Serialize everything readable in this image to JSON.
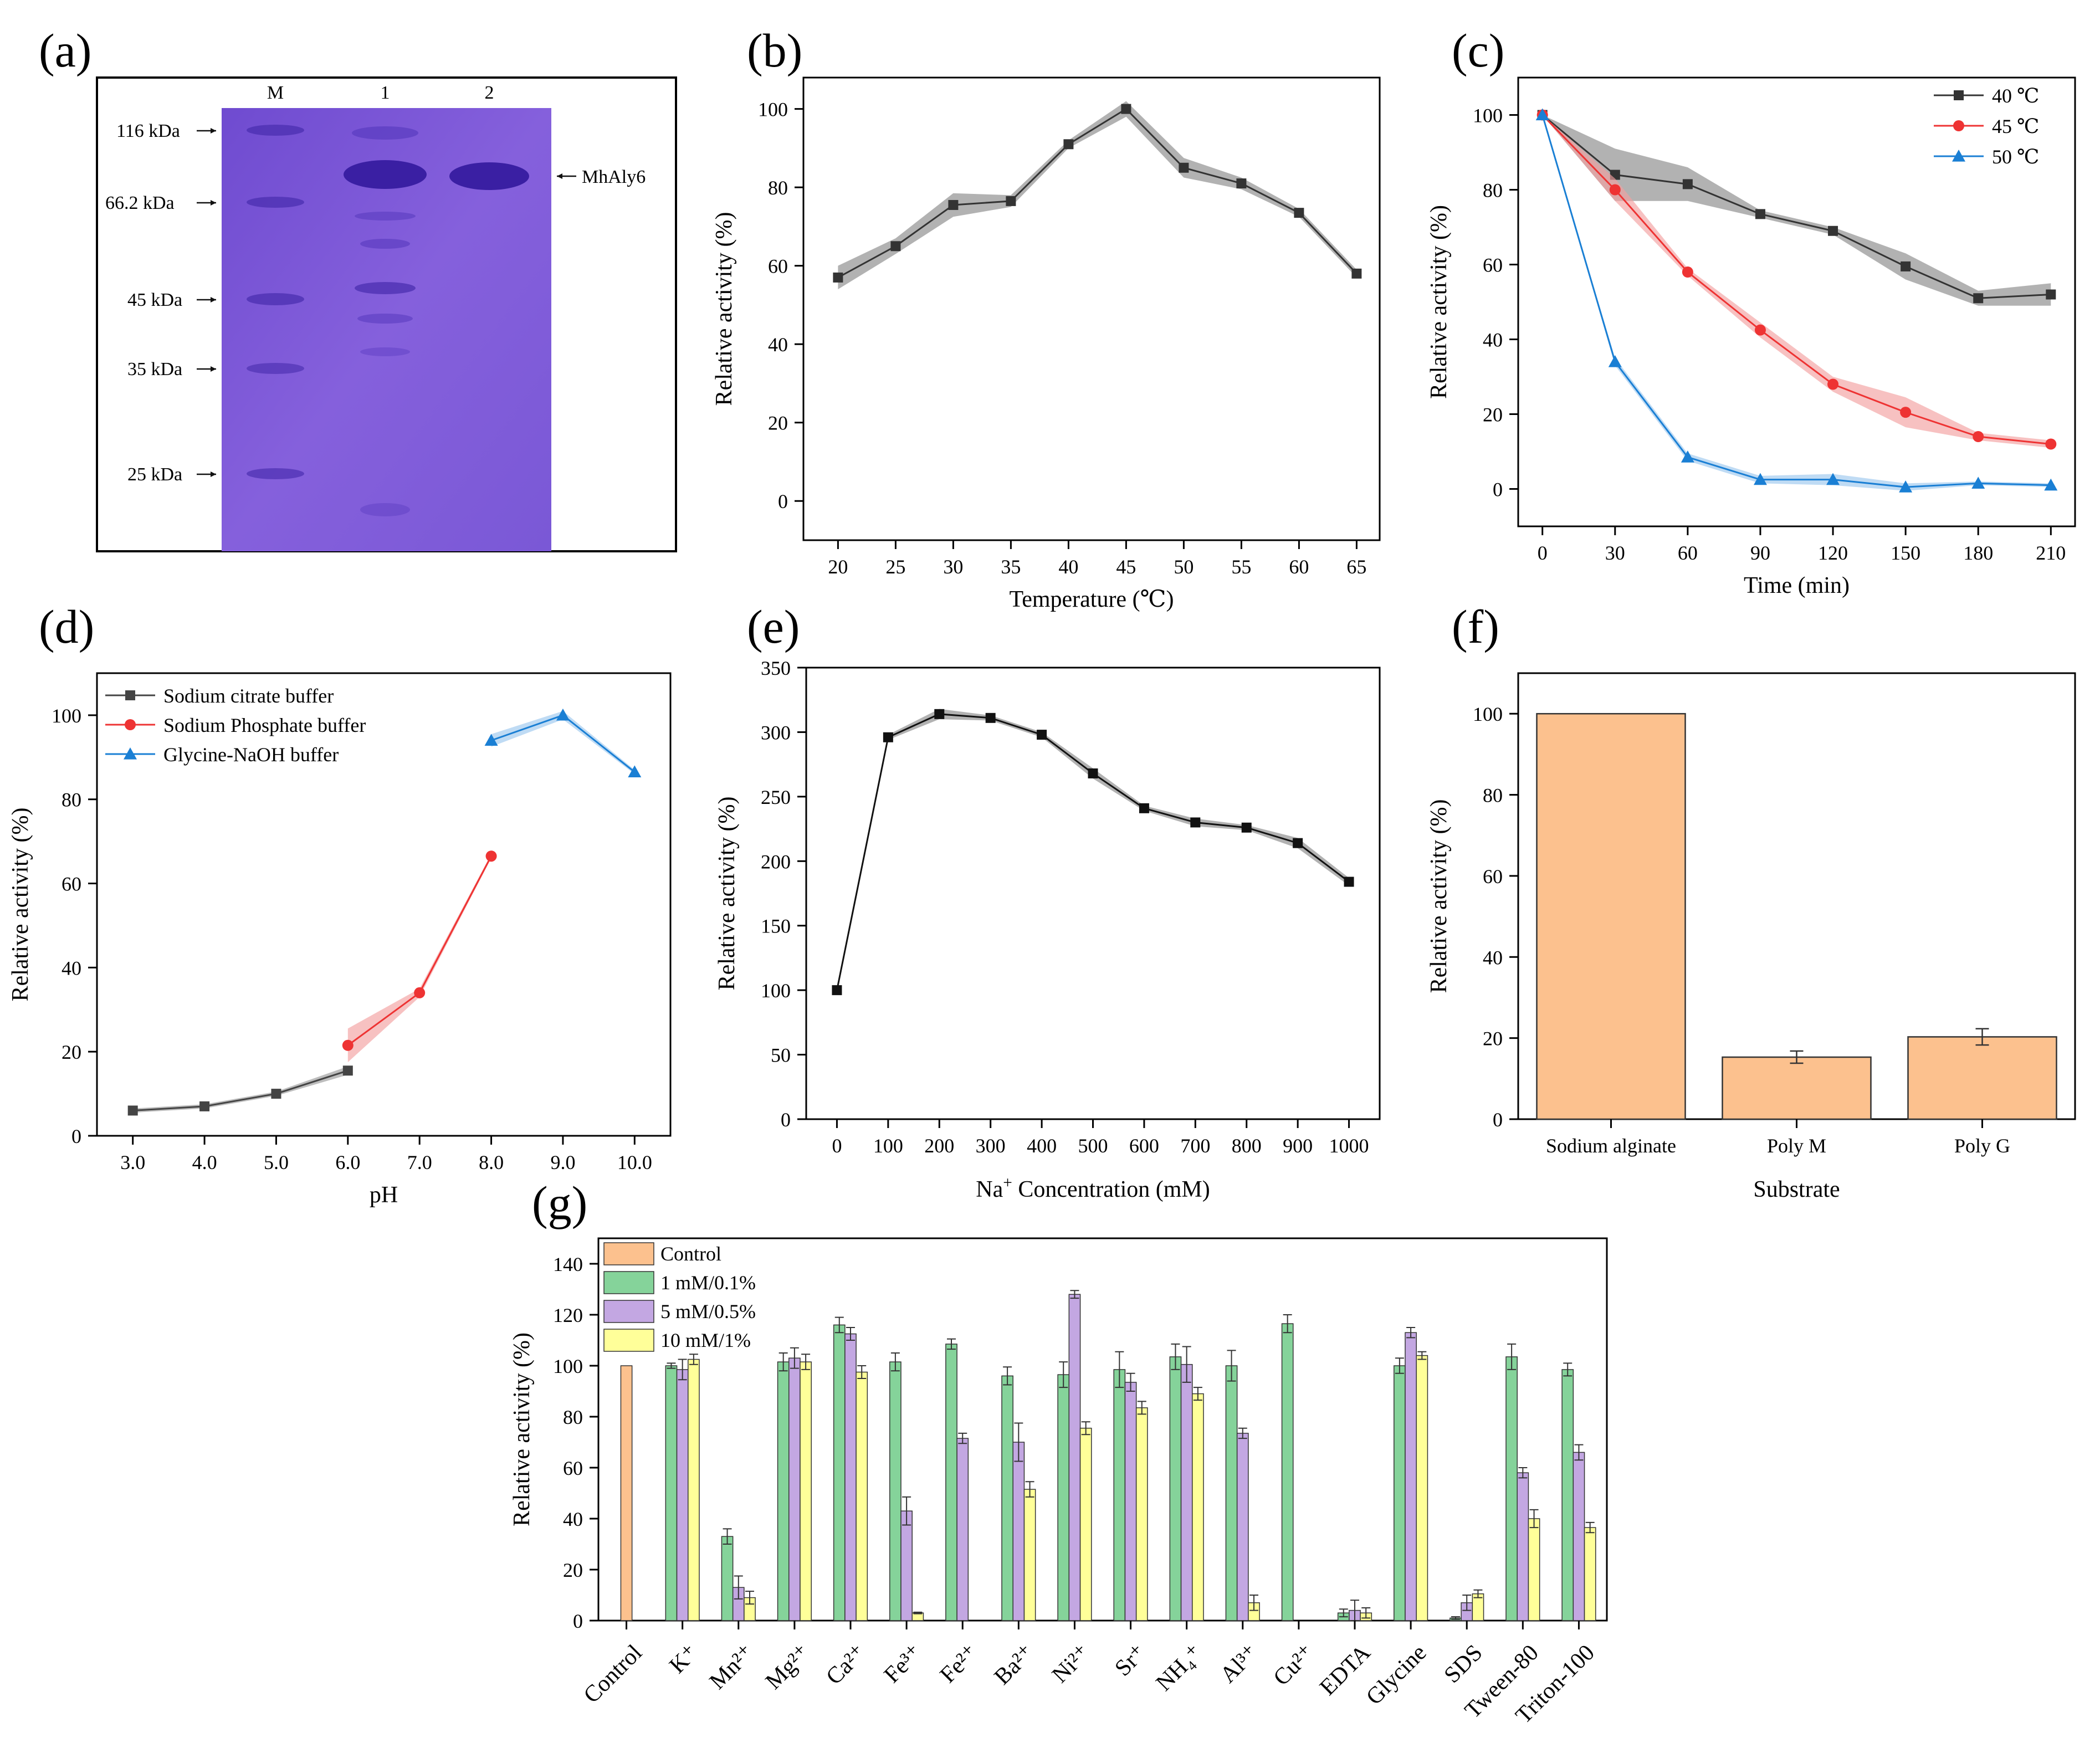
{
  "figure": {
    "panel_labels": [
      "(a)",
      "(b)",
      "(c)",
      "(d)",
      "(e)",
      "(f)",
      "(g)"
    ]
  },
  "gel": {
    "lanes": [
      "M",
      "1",
      "2"
    ],
    "markers": [
      "116 kDa",
      "66.2 kDa",
      "45 kDa",
      "35 kDa",
      "25 kDa"
    ],
    "marker_values": [
      116,
      66.2,
      45,
      35,
      25
    ],
    "band_label": "MhAly6",
    "colors": {
      "gel": "#7b55d6",
      "band": "#3a1fa3"
    }
  },
  "chart_data": [
    {
      "panel": "b",
      "type": "line",
      "xlabel": "Temperature (℃)",
      "ylabel": "Relative activity (%)",
      "xlim": [
        17,
        67
      ],
      "ylim": [
        -10,
        108
      ],
      "xticks": [
        20,
        25,
        30,
        35,
        40,
        45,
        50,
        55,
        60,
        65
      ],
      "yticks": [
        0,
        20,
        40,
        60,
        80,
        100
      ],
      "series": [
        {
          "color": "#333333",
          "marker": "square",
          "band": "#888888",
          "x": [
            20,
            25,
            30,
            35,
            40,
            45,
            50,
            55,
            60,
            65
          ],
          "y": [
            57,
            65,
            75.5,
            76.5,
            91,
            100,
            85,
            81,
            73.5,
            58
          ],
          "err": [
            3,
            2,
            3,
            1.5,
            1,
            2,
            2.5,
            1.5,
            1,
            1
          ]
        }
      ]
    },
    {
      "panel": "c",
      "type": "line",
      "xlabel": "Time (min)",
      "ylabel": "Relative activity (%)",
      "xlim": [
        -10,
        220
      ],
      "ylim": [
        -10,
        110
      ],
      "xticks": [
        0,
        30,
        60,
        90,
        120,
        150,
        180,
        210
      ],
      "yticks": [
        0,
        20,
        40,
        60,
        80,
        100
      ],
      "legend_position": "top-right",
      "series": [
        {
          "name": "40 ℃",
          "color": "#333333",
          "marker": "square",
          "band": "#888888",
          "x": [
            0,
            30,
            60,
            90,
            120,
            150,
            180,
            210
          ],
          "y": [
            100,
            84,
            81.5,
            73.5,
            69,
            59.5,
            51,
            52
          ],
          "err": [
            0,
            7,
            4.5,
            1,
            1,
            3.5,
            2,
            3
          ]
        },
        {
          "name": "45 ℃",
          "color": "#ee3333",
          "marker": "circle",
          "band": "#f2a0a0",
          "x": [
            0,
            30,
            60,
            90,
            120,
            150,
            180,
            210
          ],
          "y": [
            100,
            80,
            58,
            42.5,
            28,
            20.5,
            14,
            12
          ],
          "err": [
            0,
            3,
            1,
            2,
            2,
            4,
            1,
            1
          ]
        },
        {
          "name": "50 ℃",
          "color": "#1a7fd4",
          "marker": "triangle",
          "band": "#9cc8ee",
          "x": [
            0,
            30,
            60,
            90,
            120,
            150,
            180,
            210
          ],
          "y": [
            100,
            34,
            8.5,
            2.5,
            2.5,
            0.5,
            1.5,
            1
          ],
          "err": [
            0,
            1,
            1,
            1,
            1.5,
            1,
            0.5,
            0.5
          ]
        }
      ]
    },
    {
      "panel": "d",
      "type": "line",
      "xlabel": "pH",
      "ylabel": "Relative activity (%)",
      "xlim": [
        2.5,
        10.5
      ],
      "ylim": [
        0,
        110
      ],
      "xticks": [
        3,
        4,
        5,
        6,
        7,
        8,
        9,
        10
      ],
      "xticklabels": [
        "3.0",
        "4.0",
        "5.0",
        "6.0",
        "7.0",
        "8.0",
        "9.0",
        "10.0"
      ],
      "yticks": [
        0,
        20,
        40,
        60,
        80,
        100
      ],
      "legend_position": "top-left",
      "series": [
        {
          "name": "Sodium citrate buffer",
          "color": "#444444",
          "marker": "square",
          "band": "#999999",
          "x": [
            3,
            4,
            5,
            6
          ],
          "y": [
            6,
            7,
            10,
            15.5
          ],
          "err": [
            0.5,
            0.5,
            0.5,
            1
          ]
        },
        {
          "name": "Sodium Phosphate buffer",
          "color": "#ee3333",
          "marker": "circle",
          "band": "#f2a0a0",
          "x": [
            6,
            7,
            8
          ],
          "y": [
            21.5,
            34,
            66.5
          ],
          "err": [
            4,
            1,
            0.5
          ]
        },
        {
          "name": "Glycine-NaOH buffer",
          "color": "#1a7fd4",
          "marker": "triangle",
          "band": "#9cc8ee",
          "x": [
            8,
            9,
            10
          ],
          "y": [
            94,
            100,
            86.5
          ],
          "err": [
            1.5,
            1,
            0.5
          ]
        }
      ]
    },
    {
      "panel": "e",
      "type": "line",
      "xlabel": "Na⁺ Concentration (mM)",
      "ylabel": "Relative activity (%)",
      "xlim": [
        -60,
        1060
      ],
      "ylim": [
        0,
        350
      ],
      "xticks": [
        0,
        100,
        200,
        300,
        400,
        500,
        600,
        700,
        800,
        900,
        1000
      ],
      "yticks": [
        0,
        50,
        100,
        150,
        200,
        250,
        300,
        350
      ],
      "series": [
        {
          "color": "#111111",
          "marker": "square",
          "band": "#888888",
          "x": [
            0,
            100,
            200,
            300,
            400,
            500,
            600,
            700,
            800,
            900,
            1000
          ],
          "y": [
            100,
            296,
            314,
            311,
            298,
            268,
            241,
            230,
            226,
            214,
            184
          ],
          "err": [
            0,
            2,
            4,
            2,
            2,
            4,
            2,
            3,
            2,
            4,
            3
          ]
        }
      ]
    },
    {
      "panel": "f",
      "type": "bar",
      "xlabel": "Substrate",
      "ylabel": "Relative activity (%)",
      "ylim": [
        0,
        110
      ],
      "yticks": [
        0,
        20,
        40,
        60,
        80,
        100
      ],
      "categories": [
        "Sodium alginate",
        "Poly M",
        "Poly G"
      ],
      "values": [
        100,
        15.3,
        20.3
      ],
      "err": [
        0,
        1.5,
        2
      ],
      "color": "#fcc18e"
    },
    {
      "panel": "g",
      "type": "bar",
      "ylabel": "Relative activity (%)",
      "ylim": [
        0,
        150
      ],
      "yticks": [
        0,
        20,
        40,
        60,
        80,
        100,
        120,
        140
      ],
      "categories": [
        "Control",
        "K⁺",
        "Mn²⁺",
        "Mg²⁺",
        "Ca²⁺",
        "Fe³⁺",
        "Fe²⁺",
        "Ba²⁺",
        "Ni²⁺",
        "Sr⁺",
        "NH₄⁺",
        "Al³⁺",
        "Cu²⁺",
        "EDTA",
        "Glycine",
        "SDS",
        "Tween-80",
        "Triton-100"
      ],
      "legend_position": "top-left",
      "series": [
        {
          "name": "Control",
          "color": "#fcc18e",
          "values": [
            100,
            null,
            null,
            null,
            null,
            null,
            null,
            null,
            null,
            null,
            null,
            null,
            null,
            null,
            null,
            null,
            null,
            null
          ],
          "err": [
            0,
            null,
            null,
            null,
            null,
            null,
            null,
            null,
            null,
            null,
            null,
            null,
            null,
            null,
            null,
            null,
            null,
            null
          ]
        },
        {
          "name": "1 mM/0.1%",
          "color": "#85d39a",
          "values": [
            null,
            100,
            33,
            101.5,
            116,
            101.5,
            108.5,
            96,
            96.5,
            98.5,
            103.5,
            100,
            116.5,
            3,
            100,
            1,
            103.5,
            98.5
          ],
          "err": [
            null,
            1,
            3,
            3.5,
            3,
            3.5,
            2,
            3.5,
            5,
            7,
            5,
            6,
            3.5,
            1.5,
            3,
            0.5,
            5,
            2.5
          ]
        },
        {
          "name": "5 mM/0.5%",
          "color": "#c3a7e2",
          "values": [
            null,
            98.5,
            13,
            103,
            112.5,
            43,
            71.5,
            70,
            128,
            93.5,
            100.5,
            73.5,
            0,
            4,
            113,
            7,
            58,
            66
          ],
          "err": [
            null,
            4,
            4.5,
            4,
            2.5,
            5.5,
            2,
            7.5,
            1.5,
            3.5,
            7,
            2,
            0,
            4,
            2,
            3,
            2,
            3
          ]
        },
        {
          "name": "10 mM/1%",
          "color": "#ffff99",
          "values": [
            null,
            102.5,
            9,
            101.5,
            97.5,
            3,
            0,
            51.5,
            75.5,
            83.5,
            89,
            7,
            0,
            3,
            104,
            10.5,
            40,
            36.5
          ],
          "err": [
            null,
            2,
            2.5,
            3,
            2.5,
            0.3,
            0,
            3,
            2.5,
            2.5,
            2.5,
            3,
            0,
            2,
            1.5,
            1.5,
            3.5,
            2
          ]
        }
      ]
    }
  ]
}
